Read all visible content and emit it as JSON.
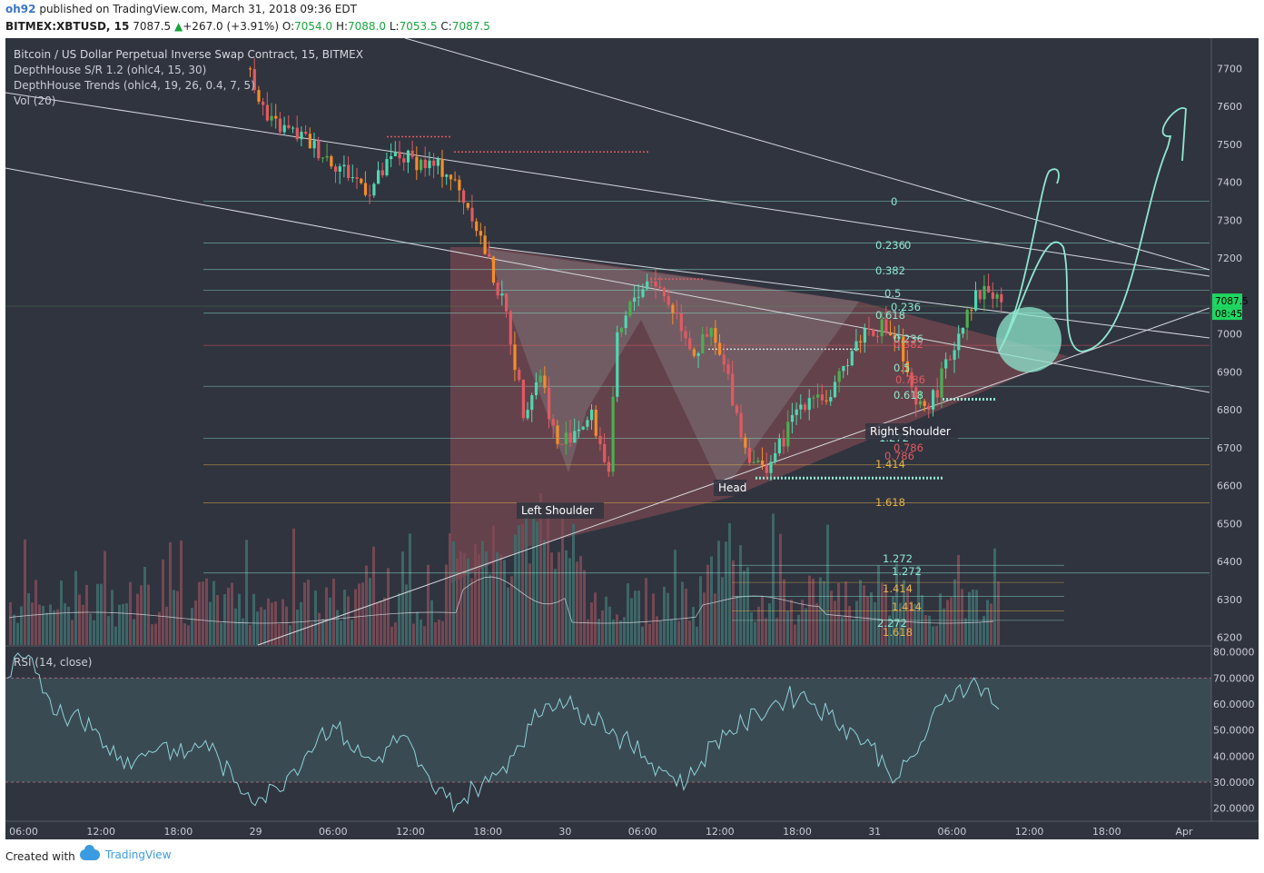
{
  "header": {
    "user": "oh92",
    "published_text": "published on TradingView.com, March 31, 2018 09:36 EDT",
    "symbol": "BITMEX:XBTUSD, 15",
    "last": "7087.5",
    "change_arrow": "▲",
    "change": "+267.0 (+3.91%)",
    "o_label": "O:",
    "o_value": "7054.0",
    "h_label": "H:",
    "h_value": "7088.0",
    "l_label": "L:",
    "l_value": "7053.5",
    "c_label": "C:",
    "c_value": "7087.5"
  },
  "legend": {
    "title": "Bitcoin / US Dollar Perpetual Inverse Swap Contract, 15, BITMEX",
    "ind1": "DepthHouse S/R 1.2 (ohlc4, 15, 30)",
    "ind2": "DepthHouse Trends (ohlc4, 19, 26, 0.4, 7, 5)",
    "ind3": "Vol (20)"
  },
  "rsi_legend": "RSI (14, close)",
  "price_badge": "7087.5",
  "time_badge": "08:45",
  "footer": {
    "created": "Created with",
    "brand": "TradingView"
  },
  "colors": {
    "bg": "#30343f",
    "up": "#4dd9b0",
    "down": "#e15a61",
    "orange": "#f58d2a",
    "teal": "#8ee8cf",
    "badge": "#1ed760"
  },
  "chart_data": [
    {
      "type": "candlestick",
      "title": "Bitcoin / US Dollar Perpetual Inverse Swap Contract, 15, BITMEX",
      "ylim": [
        6180,
        7780
      ],
      "price_ticks": [
        7700,
        7600,
        7500,
        7400,
        7300,
        7200,
        7000,
        6900,
        6800,
        6700,
        6600,
        6500,
        6400,
        6300,
        6200
      ],
      "x_ticks": [
        "06:00",
        "12:00",
        "18:00",
        "29",
        "06:00",
        "12:00",
        "18:00",
        "30",
        "06:00",
        "12:00",
        "18:00",
        "31",
        "06:00",
        "12:00",
        "18:00",
        "Apr"
      ],
      "close_path": [
        [
          0,
          7700
        ],
        [
          2,
          7560
        ],
        [
          6,
          7520
        ],
        [
          10,
          7450
        ],
        [
          14,
          7380
        ],
        [
          17,
          7470
        ],
        [
          19,
          7460
        ],
        [
          23,
          7430
        ],
        [
          26,
          7320
        ],
        [
          30,
          7050
        ],
        [
          32,
          6800
        ],
        [
          34,
          6900
        ],
        [
          36,
          6700
        ],
        [
          38,
          6750
        ],
        [
          40,
          6780
        ],
        [
          42,
          6640
        ],
        [
          43,
          6980
        ],
        [
          45,
          7100
        ],
        [
          47,
          7150
        ],
        [
          50,
          7050
        ],
        [
          52,
          6950
        ],
        [
          54,
          7000
        ],
        [
          56,
          6880
        ],
        [
          58,
          6700
        ],
        [
          60,
          6640
        ],
        [
          62,
          6700
        ],
        [
          64,
          6800
        ],
        [
          66,
          6850
        ],
        [
          68,
          6820
        ],
        [
          70,
          6940
        ],
        [
          72,
          7010
        ],
        [
          74,
          7020
        ],
        [
          76,
          6980
        ],
        [
          77,
          6880
        ],
        [
          78,
          6800
        ],
        [
          80,
          6830
        ],
        [
          82,
          6940
        ],
        [
          84,
          7070
        ],
        [
          86,
          7120
        ],
        [
          88,
          7087.5
        ]
      ],
      "annotations": [
        "Left Shoulder",
        "Head",
        "Right Shoulder"
      ],
      "fib_labels": [
        "0",
        "0.236",
        "0",
        "0.382",
        "0.5",
        "0.236",
        "0.618",
        "0.236",
        "0.382",
        "0.5",
        "0.618",
        "0.786",
        "1.272",
        "0.786",
        "0.786",
        "1.414",
        "1.618",
        "1.272",
        "1.272",
        "1.414",
        "1.414",
        "2.272",
        "1.618"
      ],
      "fib_levels": [
        {
          "label": "0",
          "price": 7350,
          "color": "#8ee8cf"
        },
        {
          "label": "0.236",
          "price": 7240,
          "color": "#8ee8cf"
        },
        {
          "label": "0.382",
          "price": 7170,
          "color": "#8ee8cf"
        },
        {
          "label": "0.5",
          "price": 7115,
          "color": "#8ee8cf"
        },
        {
          "label": "0.618",
          "price": 7055,
          "color": "#8ee8cf"
        },
        {
          "label": "0.786",
          "price": 6970,
          "color": "#e15a61"
        },
        {
          "label": "1",
          "price": 6862,
          "color": "#8ee8cf"
        },
        {
          "label": "1.272",
          "price": 6725,
          "color": "#8ee8cf"
        },
        {
          "label": "1.414",
          "price": 6655,
          "color": "#e6b34a"
        },
        {
          "label": "1.618",
          "price": 6555,
          "color": "#e6b34a"
        },
        {
          "label": "2.272",
          "price": 6370,
          "color": "#8ee8cf"
        }
      ],
      "current_price": 7087.5
    },
    {
      "type": "line",
      "title": "RSI (14, close)",
      "ylim": [
        15,
        82
      ],
      "y_ticks": [
        "80.0000",
        "70.0000",
        "60.0000",
        "50.0000",
        "40.0000",
        "30.0000",
        "20.0000"
      ],
      "bands": [
        30,
        70
      ],
      "values": [
        70,
        78,
        72,
        62,
        55,
        58,
        50,
        44,
        40,
        38,
        42,
        45,
        40,
        42,
        46,
        38,
        30,
        26,
        24,
        28,
        34,
        40,
        48,
        52,
        46,
        40,
        38,
        44,
        48,
        36,
        28,
        24,
        22,
        28,
        30,
        36,
        44,
        52,
        60,
        62,
        58,
        56,
        54,
        48,
        44,
        40,
        36,
        32,
        30,
        38,
        46,
        50,
        52,
        56,
        60,
        62,
        64,
        60,
        56,
        52,
        48,
        44,
        36,
        32,
        40,
        50,
        60,
        66,
        68,
        66,
        58
      ]
    }
  ]
}
